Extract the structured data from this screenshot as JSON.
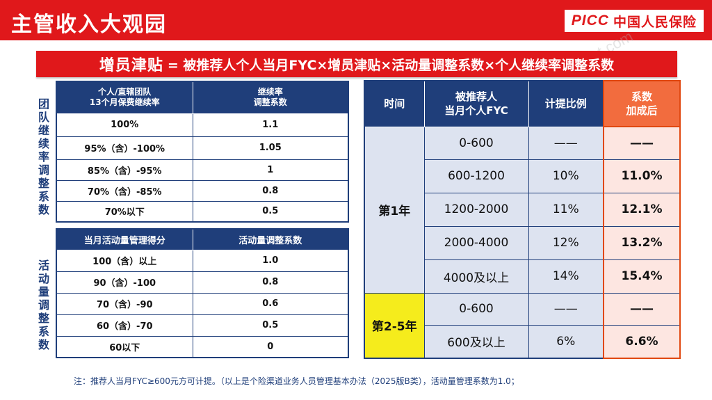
{
  "header": {
    "title": "主管收入大观园",
    "logo_latin": "PICC",
    "logo_cn": "中国人民保险"
  },
  "banner": {
    "highlight": "增员津贴",
    "formula": "= 被推荐人个人当月FYC×增员津贴×活动量调整系数×个人继续率调整系数"
  },
  "side_labels": {
    "retention": "团队继续率调整系数",
    "activity": "活动量调整系数"
  },
  "retention_table": {
    "headers": [
      "个人/直辖团队\n13个月保费继续率",
      "继续率\n调整系数"
    ],
    "rows": [
      [
        "100%",
        "1.1"
      ],
      [
        "95%（含）-100%",
        "1.05"
      ],
      [
        "85%（含）-95%",
        "1"
      ],
      [
        "70%（含）-85%",
        "0.8"
      ],
      [
        "70%以下",
        "0.5"
      ]
    ]
  },
  "activity_table": {
    "headers": [
      "当月活动量管理得分",
      "活动量调整系数"
    ],
    "rows": [
      [
        "100（含）以上",
        "1.0"
      ],
      [
        "90（含）-100",
        "0.8"
      ],
      [
        "70（含）-90",
        "0.6"
      ],
      [
        "60（含）-70",
        "0.5"
      ],
      [
        "60以下",
        "0"
      ]
    ]
  },
  "rate_table": {
    "headers": [
      "时间",
      "被推荐人\n当月个人FYC",
      "计提比例",
      "系数\n加成后"
    ],
    "year1": {
      "label": "第1年",
      "rows": [
        [
          "0-600",
          "——",
          "——"
        ],
        [
          "600-1200",
          "10%",
          "11.0%"
        ],
        [
          "1200-2000",
          "11%",
          "12.1%"
        ],
        [
          "2000-4000",
          "12%",
          "13.2%"
        ],
        [
          "4000及以上",
          "14%",
          "15.4%"
        ]
      ]
    },
    "year25": {
      "label": "第2-5年",
      "rows": [
        [
          "0-600",
          "——",
          "——"
        ],
        [
          "600及以上",
          "6%",
          "6.6%"
        ]
      ]
    }
  },
  "note": "注：推荐人当月FYC≥600元方可计提。（以上是个险渠道业务人员管理基本办法（2025版B类），活动量管理系数为1.0；",
  "watermark": "xinpt.com",
  "colors": {
    "brand_red": "#e0181b",
    "navy": "#1f3e7a",
    "orange": "#f26c3e",
    "yellow": "#f5ec1c"
  }
}
